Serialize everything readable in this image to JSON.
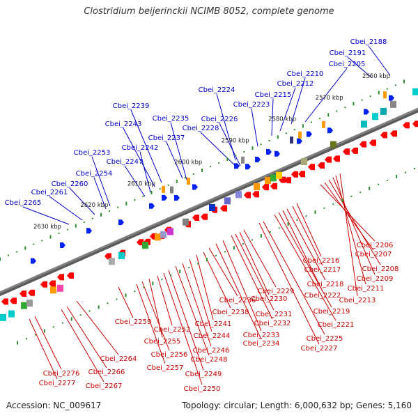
{
  "title": "Clostridium beijerinckii NCIMB 8052, complete genome",
  "footer": {
    "accession": "Accession: NC_009617",
    "topology": "Topology: circular; Length: 6,000,632 bp; Genes: 5,160"
  },
  "kbp_labels": [
    "2560 kbp",
    "2570 kbp",
    "2580 kbp",
    "2590 kbp",
    "2600 kbp",
    "2610 kbp",
    "2620 kbp",
    "2630 kbp"
  ],
  "upper_gene_labels": [
    "Cbei_2188",
    "Cbei_2191",
    "Cbei_2205",
    "Cbei_2210",
    "Cbei_2212",
    "Cbei_2215",
    "Cbei_2223",
    "Cbei_2224",
    "Cbei_2226",
    "Cbei_2228",
    "Cbei_2235",
    "Cbei_2237",
    "Cbei_2239",
    "Cbei_2243",
    "Cbei_2242",
    "Cbei_2247",
    "Cbei_2253",
    "Cbei_2254",
    "Cbei_2260",
    "Cbei_2261",
    "Cbei_2265"
  ],
  "lower_gene_labels": [
    "Cbei_2206",
    "Cbei_2207",
    "Cbei_2208",
    "Cbei_2209",
    "Cbei_2211",
    "Cbei_2213",
    "Cbei_2216",
    "Cbei_2217",
    "Cbei_2218",
    "Cbei_2219",
    "Cbei_2221",
    "Cbei_2222",
    "Cbei_2225",
    "Cbei_2227",
    "Cbei_2229",
    "Cbei_2230",
    "Cbei_2231",
    "Cbei_2232",
    "Cbei_2233",
    "Cbei_2234",
    "Cbei_2236",
    "Cbei_2238",
    "Cbei_2241",
    "Cbei_2244",
    "Cbei_2246",
    "Cbei_2248",
    "Cbei_2249",
    "Cbei_2250",
    "Cbei_2252",
    "Cbei_2255",
    "Cbei_2256",
    "Cbei_2257",
    "Cbei_2259",
    "Cbei_2264",
    "Cbei_2266",
    "Cbei_2267",
    "Cbei_2276",
    "Cbei_2277"
  ],
  "colors": {
    "upper_label": "#0000cc",
    "lower_label": "#cc0000",
    "backbone": "#808080",
    "tick": "#2e8b2e",
    "forward_gene": "#ff0000",
    "reverse_gene": "#0022ee"
  }
}
